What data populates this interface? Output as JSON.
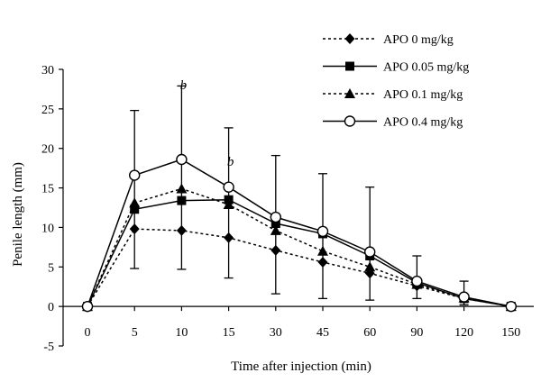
{
  "chart_data": {
    "type": "line",
    "title": "",
    "xlabel": "Time after injection (min)",
    "ylabel": "Penile length (mm)",
    "categories": [
      "0",
      "5",
      "10",
      "15",
      "30",
      "45",
      "60",
      "90",
      "120",
      "150"
    ],
    "yticks": [
      "-5",
      "0",
      "5",
      "10",
      "15",
      "20",
      "25",
      "30"
    ],
    "ylim": [
      -5,
      30
    ],
    "grid": false,
    "legend_position": "top-right",
    "series": [
      {
        "name": "APO 0 mg/kg",
        "marker": "diamond",
        "line": "dotted",
        "values": [
          0,
          9.8,
          9.6,
          8.7,
          7.1,
          5.6,
          4.2,
          2.6,
          1.0,
          0
        ],
        "error": [
          0,
          0,
          0,
          0,
          0,
          0,
          0,
          0,
          0,
          0
        ]
      },
      {
        "name": "APO 0.05 mg/kg",
        "marker": "square",
        "line": "solid",
        "values": [
          0,
          12.3,
          13.4,
          13.5,
          10.5,
          9.2,
          6.4,
          3.0,
          1.0,
          0
        ],
        "error": [
          0,
          0,
          0,
          0,
          0,
          0,
          0,
          0,
          0,
          0
        ]
      },
      {
        "name": "APO 0.1 mg/kg",
        "marker": "triangle",
        "line": "dotted",
        "values": [
          0,
          13.1,
          14.9,
          12.9,
          9.6,
          7.0,
          5.0,
          2.8,
          1.1,
          0
        ],
        "error": [
          0,
          0,
          0,
          0,
          0,
          0,
          0,
          0,
          0,
          0
        ]
      },
      {
        "name": "APO 0.4 mg/kg",
        "marker": "circle",
        "line": "solid",
        "values": [
          0,
          16.6,
          18.6,
          15.1,
          11.3,
          9.5,
          6.9,
          3.2,
          1.2,
          0
        ],
        "error": [
          0,
          8.2,
          9.3,
          7.5,
          7.8,
          7.3,
          8.2,
          3.2,
          2.0,
          0
        ]
      }
    ],
    "error_bars_lower": [
      0,
      4.8,
      4.7,
      3.6,
      1.6,
      1.0,
      0.8,
      1.0,
      0.2,
      0
    ],
    "annotations": [
      {
        "text": "b",
        "category": "10",
        "y": 27.5
      },
      {
        "text": "b",
        "category": "15",
        "y": 17.8
      }
    ]
  }
}
